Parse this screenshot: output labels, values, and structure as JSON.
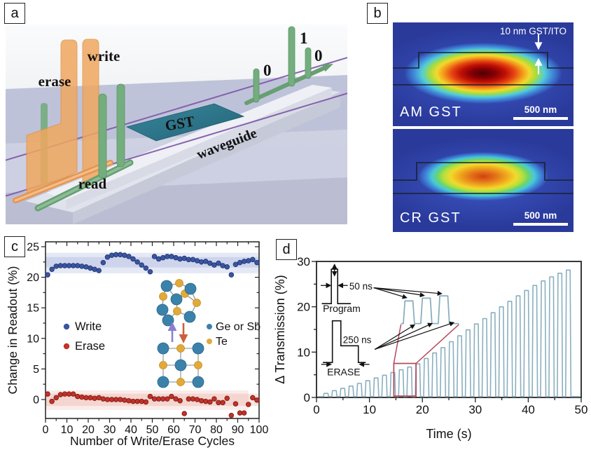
{
  "panel_labels": {
    "a": "a",
    "b": "b",
    "c": "c",
    "d": "d"
  },
  "panel_a": {
    "labels": {
      "erase": "erase",
      "write": "write",
      "read": "read",
      "gst": "GST",
      "waveguide": "waveguide"
    },
    "bits": [
      "0",
      "1",
      "0"
    ],
    "colors": {
      "pulse_orange": "#f0a75f",
      "pulse_orange_edge": "#e09448",
      "pulse_green": "#74ad7e",
      "pulse_green_edge": "#5a9465",
      "gst_teal": "#2f7b92",
      "line_purple": "#7e57a8"
    }
  },
  "panel_b": {
    "annotation": "10 nm GST/ITO",
    "top": {
      "label": "AM GST",
      "scale_bar": "500 nm"
    },
    "bottom": {
      "label": "CR GST",
      "scale_bar": "500 nm"
    },
    "colors": {
      "background": "#2c3ba0"
    }
  },
  "chart_data": [
    {
      "panel": "c",
      "type": "scatter",
      "xlabel": "Number of Write/Erase Cycles",
      "ylabel": "Change in Readout (%)",
      "xlim": [
        0,
        100
      ],
      "ylim": [
        -3.1,
        25.8
      ],
      "xticks": [
        0,
        10,
        20,
        30,
        40,
        50,
        60,
        70,
        80,
        90,
        100
      ],
      "yticks": [
        0,
        5,
        10,
        15,
        20,
        25
      ],
      "xminor_step": 5,
      "yminor_step": 2.5,
      "grid": false,
      "x": [
        1,
        3,
        5,
        7,
        9,
        11,
        13,
        15,
        17,
        19,
        21,
        23,
        25,
        27,
        29,
        31,
        33,
        35,
        37,
        39,
        41,
        43,
        45,
        47,
        49,
        51,
        53,
        55,
        57,
        59,
        61,
        63,
        65,
        67,
        69,
        71,
        73,
        75,
        77,
        79,
        81,
        83,
        85,
        87,
        89,
        91,
        93,
        95,
        97,
        99
      ],
      "series": [
        {
          "name": "Write",
          "color": "#3a55a4",
          "edge": "#22366e",
          "y": [
            20.4,
            21.3,
            21.8,
            21.9,
            21.9,
            21.9,
            21.9,
            21.9,
            21.8,
            21.7,
            21.5,
            21.3,
            21.1,
            22.4,
            23.3,
            23.6,
            23.7,
            23.7,
            23.6,
            23.4,
            23.0,
            22.5,
            22.0,
            21.5,
            20.9,
            23.4,
            23.0,
            23.2,
            23.4,
            23.4,
            23.2,
            23.0,
            23.1,
            22.9,
            22.9,
            22.7,
            22.5,
            22.6,
            22.3,
            22.0,
            22.3,
            21.9,
            21.7,
            20.4,
            22.1,
            22.4,
            22.6,
            22.7,
            22.9,
            22.4
          ]
        },
        {
          "name": "Erase",
          "color": "#c23229",
          "edge": "#7e1d16",
          "y": [
            0.9,
            -0.3,
            0.3,
            0.8,
            0.9,
            0.9,
            0.9,
            0.5,
            0.4,
            0.3,
            0.3,
            0.2,
            0.3,
            0.1,
            0.0,
            0.0,
            0.0,
            0.0,
            -0.1,
            -0.2,
            -0.3,
            -0.3,
            -0.3,
            -0.4,
            0.5,
            0.1,
            0.1,
            0.1,
            0.1,
            0.5,
            0.1,
            -0.2,
            -2.3,
            0.1,
            0.1,
            0.0,
            -0.2,
            -0.3,
            -0.4,
            0.1,
            -0.5,
            -0.5,
            0.2,
            -2.6,
            -0.7,
            -2.2,
            -2.2,
            -0.8,
            0.3,
            -0.1
          ]
        }
      ],
      "bands": [
        {
          "x0": 0,
          "x1": 100,
          "y0": 20.65,
          "y1": 24.0,
          "color": "rgba(125,142,205,0.20)"
        },
        {
          "x0": 0,
          "x1": 100,
          "y0": 21.6,
          "y1": 23.3,
          "color": "rgba(125,142,205,0.22)"
        },
        {
          "x0": 0,
          "x1": 95,
          "y0": -1.7,
          "y1": 1.5,
          "color": "rgba(226,150,140,0.18)"
        },
        {
          "x0": 0,
          "x1": 100,
          "y0": -1.05,
          "y1": 0.95,
          "color": "rgba(222,130,120,0.22)"
        }
      ],
      "legend": [
        {
          "label": "Write",
          "color": "#3a55a4"
        },
        {
          "label": "Erase",
          "color": "#c23229"
        }
      ],
      "inset_legend": [
        {
          "label": "Ge or Sb",
          "color": "#3b82ab",
          "edge": "#2a6688"
        },
        {
          "label": "Te",
          "color": "#e2a93b",
          "edge": "#c8901f"
        }
      ],
      "inset_arrow_up_color": "#8b7fd0",
      "inset_arrow_down_color": "#cd5f3d"
    },
    {
      "panel": "d",
      "type": "line",
      "xlabel": "Time (s)",
      "ylabel": "Δ Transmission (%)",
      "xlim": [
        0,
        50
      ],
      "ylim": [
        0,
        30
      ],
      "xticks": [
        0,
        10,
        20,
        30,
        40,
        50
      ],
      "yticks": [
        0,
        10,
        20,
        30
      ],
      "xminor_step": 5,
      "yminor_step": 5,
      "grid": false,
      "line_color": "#8aafbe",
      "pulses": {
        "start": 1.3,
        "period": 1.578,
        "width": 0.85,
        "baseline": 0.18,
        "amplitudes": [
          0.9,
          1.5,
          2.0,
          2.5,
          3.1,
          3.7,
          4.3,
          4.9,
          5.5,
          6.1,
          6.7,
          7.4,
          8.6,
          9.8,
          11.0,
          12.3,
          13.6,
          14.9,
          16.2,
          17.4,
          18.7,
          20.0,
          21.2,
          22.4,
          23.6,
          24.7,
          25.7,
          26.6,
          27.4,
          28.1
        ]
      },
      "inset": {
        "program_label": "Program",
        "program_width_label": "50 ns",
        "erase_label": "ERASE",
        "erase_width_label": "250 ns",
        "zoom_box": {
          "x0": 14.6,
          "x1": 18.8,
          "y0": 0.3,
          "y1": 7.5
        },
        "zoom_box_color": "#b5485a",
        "zoom_baseline": 16.3,
        "zoom_pulse_tops": [
          21.3,
          21.9,
          22.4
        ],
        "zoom_pulse_starts": [
          16.4,
          19.7,
          23.0
        ],
        "zoom_pulse_width": 1.8
      }
    }
  ]
}
